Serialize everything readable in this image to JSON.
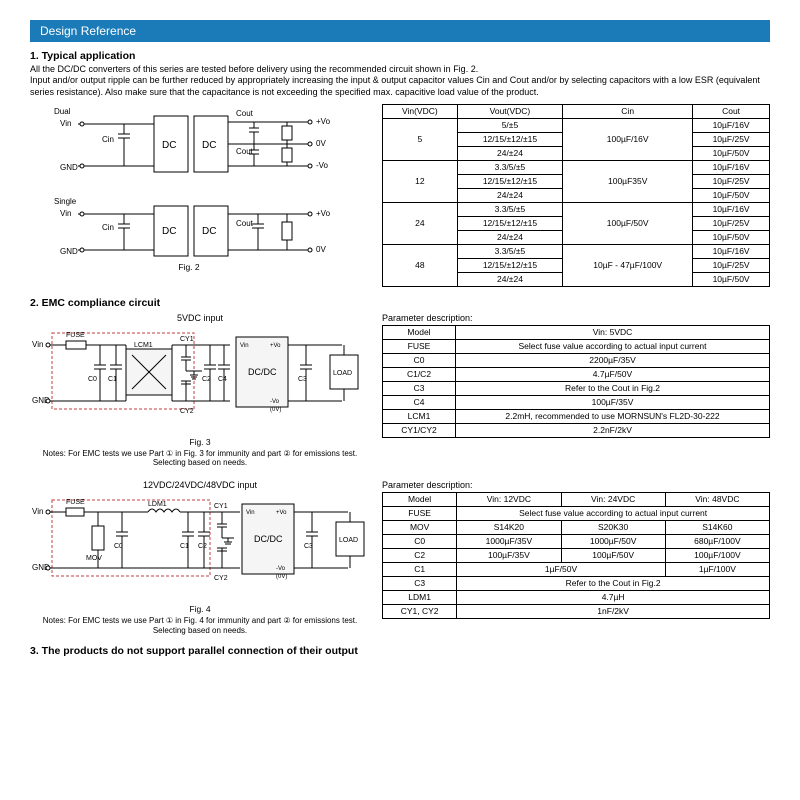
{
  "header": "Design Reference",
  "sec1": {
    "title": "1.  Typical application",
    "body": "All the DC/DC converters of this series are tested before delivery using the recommended circuit shown in Fig. 2.\nInput and/or output ripple can be further reduced by appropriately increasing the input & output capacitor values Cin and Cout and/or by selecting capacitors with a low ESR (equivalent series resistance). Also make sure that the capacitance is not exceeding the specified max. capacitive load value of the product."
  },
  "fig2": {
    "dual_label": "Dual",
    "single_label": "Single",
    "vin": "Vin",
    "gnd": "GND",
    "cin": "Cin",
    "dc": "DC",
    "cout": "Cout",
    "plusvo": "+Vo",
    "zerov": "0V",
    "minusvo": "-Vo",
    "caption": "Fig. 2"
  },
  "table1": {
    "headers": [
      "Vin(VDC)",
      "Vout(VDC)",
      "Cin",
      "Cout"
    ],
    "groups": [
      {
        "vin": "5",
        "cin": "100µF/16V",
        "rows": [
          [
            "5/±5",
            "10µF/16V"
          ],
          [
            "12/15/±12/±15",
            "10µF/25V"
          ],
          [
            "24/±24",
            "10µF/50V"
          ]
        ]
      },
      {
        "vin": "12",
        "cin": "100µF35V",
        "rows": [
          [
            "3.3/5/±5",
            "10µF/16V"
          ],
          [
            "12/15/±12/±15",
            "10µF/25V"
          ],
          [
            "24/±24",
            "10µF/50V"
          ]
        ]
      },
      {
        "vin": "24",
        "cin": "100µF/50V",
        "rows": [
          [
            "3.3/5/±5",
            "10µF/16V"
          ],
          [
            "12/15/±12/±15",
            "10µF/25V"
          ],
          [
            "24/±24",
            "10µF/50V"
          ]
        ]
      },
      {
        "vin": "48",
        "cin": "10µF - 47µF/100V",
        "rows": [
          [
            "3.3/5/±5",
            "10µF/16V"
          ],
          [
            "12/15/±12/±15",
            "10µF/25V"
          ],
          [
            "24/±24",
            "10µF/50V"
          ]
        ]
      }
    ]
  },
  "sec2": {
    "title": "2.  EMC compliance circuit"
  },
  "fig3": {
    "title": "5VDC input",
    "caption": "Fig. 3",
    "notes": "Notes: For EMC tests we use Part ① in Fig. 3 for immunity and part ② for emissions test. Selecting based on needs.",
    "labels": {
      "fuse": "FUSE",
      "lcm1": "LCM1",
      "cy1": "CY1",
      "cy2": "CY2",
      "c0": "C0",
      "c1": "C1",
      "c2": "C2",
      "c3": "C3",
      "c4": "C4",
      "dcdc": "DC/DC",
      "load": "LOAD",
      "vin": "Vin",
      "gnd": "GND",
      "plusvo": "+Vo",
      "minusvo": "-Vo",
      "zerov": "(0V)"
    }
  },
  "table2": {
    "title": "Parameter description:",
    "rows": [
      [
        "Model",
        "Vin: 5VDC"
      ],
      [
        "FUSE",
        "Select fuse value according to actual input current"
      ],
      [
        "C0",
        "2200µF/35V"
      ],
      [
        "C1/C2",
        "4.7µF/50V"
      ],
      [
        "C3",
        "Refer to the Cout in Fig.2"
      ],
      [
        "C4",
        "100µF/35V"
      ],
      [
        "LCM1",
        "2.2mH, recommended to use MORNSUN's FL2D-30-222"
      ],
      [
        "CY1/CY2",
        "2.2nF/2kV"
      ]
    ]
  },
  "fig4": {
    "title": "12VDC/24VDC/48VDC input",
    "caption": "Fig. 4",
    "notes": "Notes: For EMC tests we use Part ① in Fig. 4 for immunity and part ② for emissions test. Selecting based on needs.",
    "labels": {
      "fuse": "FUSE",
      "mov": "MOV",
      "c0": "C0",
      "ldm1": "LDM1",
      "c1": "C1",
      "c2": "C2",
      "cy1": "CY1",
      "cy2": "CY2",
      "c3": "C3",
      "dcdc": "DC/DC",
      "load": "LOAD",
      "vin": "Vin",
      "gnd": "GND",
      "plusvo": "+Vo",
      "minusvo": "-Vo",
      "zerov": "(0V)"
    }
  },
  "table3": {
    "title": "Parameter description:",
    "header": [
      "Model",
      "Vin: 12VDC",
      "Vin: 24VDC",
      "Vin: 48VDC"
    ],
    "rows": [
      {
        "k": "FUSE",
        "span": "Select fuse value according to actual input current"
      },
      {
        "k": "MOV",
        "v": [
          "S14K20",
          "S20K30",
          "S14K60"
        ]
      },
      {
        "k": "C0",
        "v": [
          "1000µF/35V",
          "1000µF/50V",
          "680µF/100V"
        ]
      },
      {
        "k": "C2",
        "v": [
          "100µF/35V",
          "100µF/50V",
          "100µF/100V"
        ]
      },
      {
        "k": "C1",
        "v": [
          "1µF/50V",
          "",
          "1µF/100V"
        ],
        "merge12": true
      },
      {
        "k": "C3",
        "span": "Refer to the Cout in Fig.2"
      },
      {
        "k": "LDM1",
        "span": "4.7µH"
      },
      {
        "k": "CY1, CY2",
        "span": "1nF/2kV"
      }
    ]
  },
  "sec3": {
    "title": "3.  The products do not support parallel connection of their output"
  },
  "colors": {
    "accent": "#1a7bb8",
    "dashbox": "#c04040"
  }
}
